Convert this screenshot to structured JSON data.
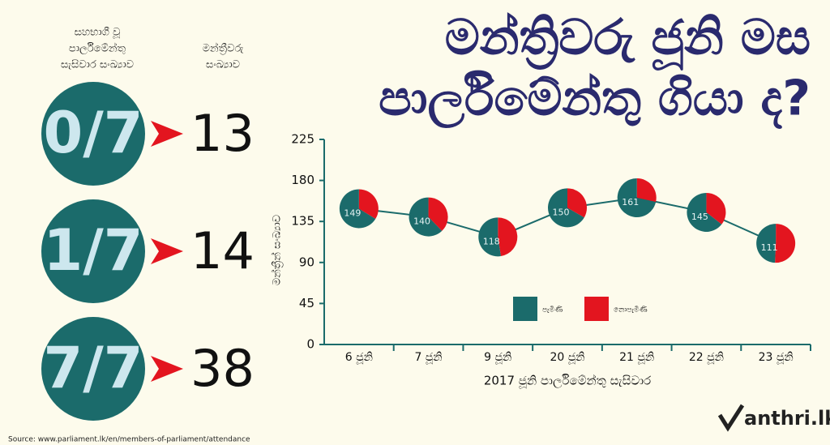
{
  "title": [
    "මන්ත්‍රිවරු ජූනි මස",
    "පාර්ලිමේන්තු ගියා ද?"
  ],
  "summary": {
    "header_sessions": [
      "සහභාගී වූ",
      "පාර්ලිමේන්තු",
      "සැසිවාර සංඛ්‍යාව"
    ],
    "header_members": [
      "මන්ත්‍රීවරු",
      "සංඛ්‍යාව"
    ],
    "rows": [
      {
        "attendance": "0/7",
        "members": 13
      },
      {
        "attendance": "1/7",
        "members": 14
      },
      {
        "attendance": "7/7",
        "members": 38
      }
    ]
  },
  "chart_data": {
    "type": "pie-line",
    "categories": [
      "6 ජූනි",
      "7 ජූනි",
      "9 ජූනි",
      "20 ජූනි",
      "21 ජූනි",
      "22 ජූනි",
      "23 ජූනි"
    ],
    "series": [
      {
        "name": "පැමිණි",
        "color": "#1b6b6b",
        "values": [
          149,
          140,
          118,
          150,
          161,
          145,
          111
        ]
      },
      {
        "name": "නොපැමිණි",
        "color": "#e3151f",
        "values": [
          76,
          85,
          107,
          75,
          64,
          80,
          114
        ]
      }
    ],
    "ylim": [
      0,
      225
    ],
    "yticks": [
      0,
      45,
      90,
      135,
      180,
      225
    ],
    "ylabel": "මන්ත්‍රීන් සංඛ්‍යාව",
    "xlabel": "2017 ජූනි පාර්ලිමේන්තු සැසිවාර",
    "line_color": "#1b6b6b"
  },
  "source": "Source: www.parliament.lk/en/members-of-parliament/attendance",
  "logo": "anthri.lk"
}
